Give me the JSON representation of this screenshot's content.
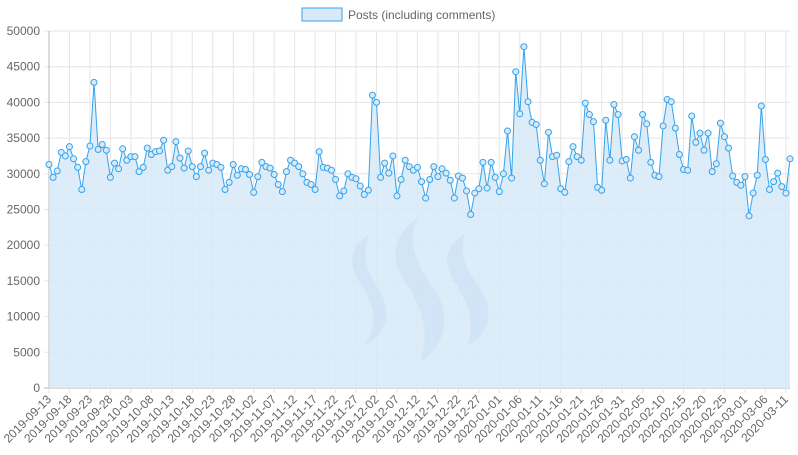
{
  "legend": {
    "label": "Posts (including comments)",
    "swatch_fill": "#d6eaf8",
    "swatch_stroke": "#36a2eb"
  },
  "colors": {
    "line": "#36a2eb",
    "area": "#d6eaf8",
    "grid": "#e5e5e5",
    "axis": "#b8b8b8",
    "tick_text": "#666666",
    "watermark": "#6b8ccf"
  },
  "watermark_icon": "steem-logo-icon",
  "chart_data": {
    "type": "area",
    "title": "",
    "xlabel": "",
    "ylabel": "",
    "ylim": [
      0,
      50000
    ],
    "yticks": [
      0,
      5000,
      10000,
      15000,
      20000,
      25000,
      30000,
      35000,
      40000,
      45000,
      50000
    ],
    "grid": true,
    "legend_position": "top-center",
    "start_date": "2019-09-13",
    "xtick_labels": [
      "2019-09-13",
      "2019-09-18",
      "2019-09-23",
      "2019-09-28",
      "2019-10-03",
      "2019-10-08",
      "2019-10-13",
      "2019-10-18",
      "2019-10-23",
      "2019-10-28",
      "2019-11-02",
      "2019-11-07",
      "2019-11-12",
      "2019-11-17",
      "2019-11-22",
      "2019-11-27",
      "2019-12-02",
      "2019-12-07",
      "2019-12-12",
      "2019-12-17",
      "2019-12-22",
      "2019-12-27",
      "2020-01-01",
      "2020-01-06",
      "2020-01-11",
      "2020-01-16",
      "2020-01-21",
      "2020-01-26",
      "2020-01-31",
      "2020-02-05",
      "2020-02-10",
      "2020-02-15",
      "2020-02-20",
      "2020-02-25",
      "2020-03-01",
      "2020-03-06",
      "2020-03-11"
    ],
    "series": [
      {
        "name": "Posts (including comments)",
        "values": [
          31300,
          29500,
          30400,
          33000,
          32500,
          33800,
          32100,
          30900,
          27800,
          31700,
          33900,
          42800,
          33400,
          34100,
          33300,
          29500,
          31500,
          30700,
          33500,
          31900,
          32400,
          32400,
          30300,
          30900,
          33600,
          32700,
          33100,
          33200,
          34700,
          30500,
          31000,
          34500,
          32200,
          30800,
          33200,
          31000,
          29600,
          31000,
          32900,
          30500,
          31500,
          31300,
          30900,
          27800,
          28800,
          31300,
          29800,
          30700,
          30600,
          29900,
          27400,
          29600,
          31600,
          31000,
          30800,
          29900,
          28500,
          27500,
          30300,
          31900,
          31500,
          31000,
          30000,
          28800,
          28500,
          27800,
          33100,
          30900,
          30800,
          30500,
          29200,
          26900,
          27600,
          30000,
          29500,
          29300,
          28300,
          27100,
          27700,
          41000,
          40000,
          29500,
          31500,
          30100,
          32500,
          26900,
          29200,
          31900,
          31000,
          30500,
          30900,
          28900,
          26600,
          29200,
          31000,
          29600,
          30700,
          30100,
          29100,
          26600,
          29700,
          29400,
          27600,
          24300,
          27300,
          27900,
          31600,
          28000,
          31600,
          29500,
          27500,
          30000,
          36000,
          29400,
          44300,
          38400,
          47800,
          40100,
          37200,
          36900,
          31900,
          28600,
          35800,
          32400,
          32600,
          27900,
          27400,
          31700,
          33800,
          32400,
          31900,
          39900,
          38300,
          37300,
          28100,
          27700,
          37500,
          31900,
          39700,
          38300,
          31800,
          32000,
          29400,
          35200,
          33300,
          38300,
          37000,
          31600,
          29800,
          29600,
          36700,
          40400,
          40100,
          36400,
          32700,
          30600,
          30500,
          38100,
          34400,
          35700,
          33300,
          35700,
          30300,
          31400,
          37100,
          35200,
          33600,
          29700,
          28800,
          28400,
          29600,
          24100,
          27300,
          29800,
          39500,
          32000,
          27800,
          28900,
          30100,
          28200,
          27300,
          32100
        ]
      }
    ]
  }
}
